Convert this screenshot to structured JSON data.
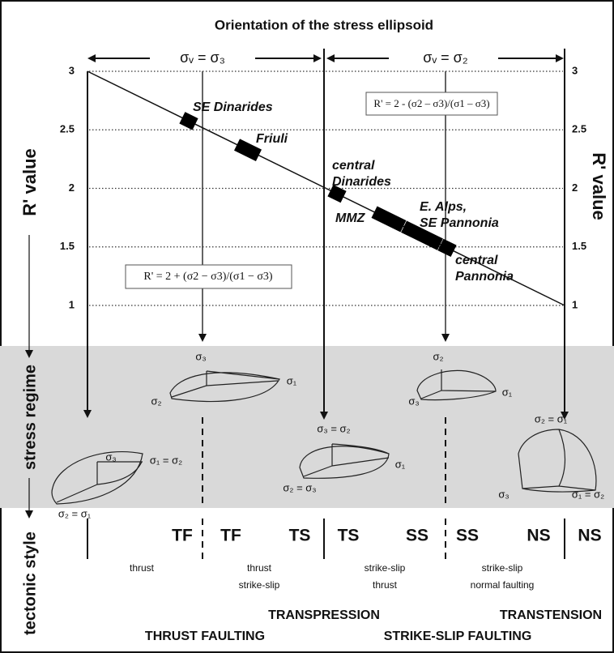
{
  "title": "Orientation of the stress ellipsoid",
  "headers": [
    "σᵥ = σ₃",
    "σᵥ = σ₂"
  ],
  "axis": {
    "label_left": "R' value",
    "label_right": "R' value",
    "ticks": [
      3,
      2.5,
      2,
      1.5,
      1
    ]
  },
  "side_labels": [
    "stress regime",
    "tectonic style"
  ],
  "formulas": [
    "R' = 2 - (σ2 – σ3)/(σ1 – σ3)",
    "R' = 2 + (σ2 − σ3)/(σ1 − σ3)"
  ],
  "regions": [
    {
      "lines": [
        "SE Dinarides"
      ]
    },
    {
      "lines": [
        "Friuli"
      ]
    },
    {
      "lines": [
        "central",
        "Dinarides"
      ]
    },
    {
      "lines": [
        "MMZ"
      ]
    },
    {
      "lines": [
        "E. Alps,",
        "SE Pannonia"
      ]
    },
    {
      "lines": [
        "central",
        "Pannonia"
      ]
    }
  ],
  "ellipsoids": [
    {
      "labels": [
        "σ₃",
        "σ₁ = σ₂",
        "σ₂ = σ₁"
      ]
    },
    {
      "labels": [
        "σ₃",
        "σ₁",
        "σ₂"
      ]
    },
    {
      "labels": [
        "σ₃ = σ₂",
        "σ₁",
        "σ₂ = σ₃"
      ]
    },
    {
      "labels": [
        "σ₂",
        "σ₁",
        "σ₃"
      ]
    },
    {
      "labels": [
        "σ₂ = σ₁",
        "σ₃",
        "σ₁ = σ₂"
      ]
    }
  ],
  "tectonic_styles": [
    "TF",
    "TF",
    "TS",
    "TS",
    "SS",
    "SS",
    "NS",
    "NS"
  ],
  "descriptions": [
    [
      "thrust"
    ],
    [
      "thrust",
      "strike-slip"
    ],
    [
      "strike-slip",
      "thrust"
    ],
    [
      "strike-slip",
      "normal faulting"
    ]
  ],
  "regimes": [
    "TRANSPRESSION",
    "TRANSTENSION"
  ],
  "faulting": [
    "THRUST  FAULTING",
    "STRIKE-SLIP  FAULTING"
  ]
}
